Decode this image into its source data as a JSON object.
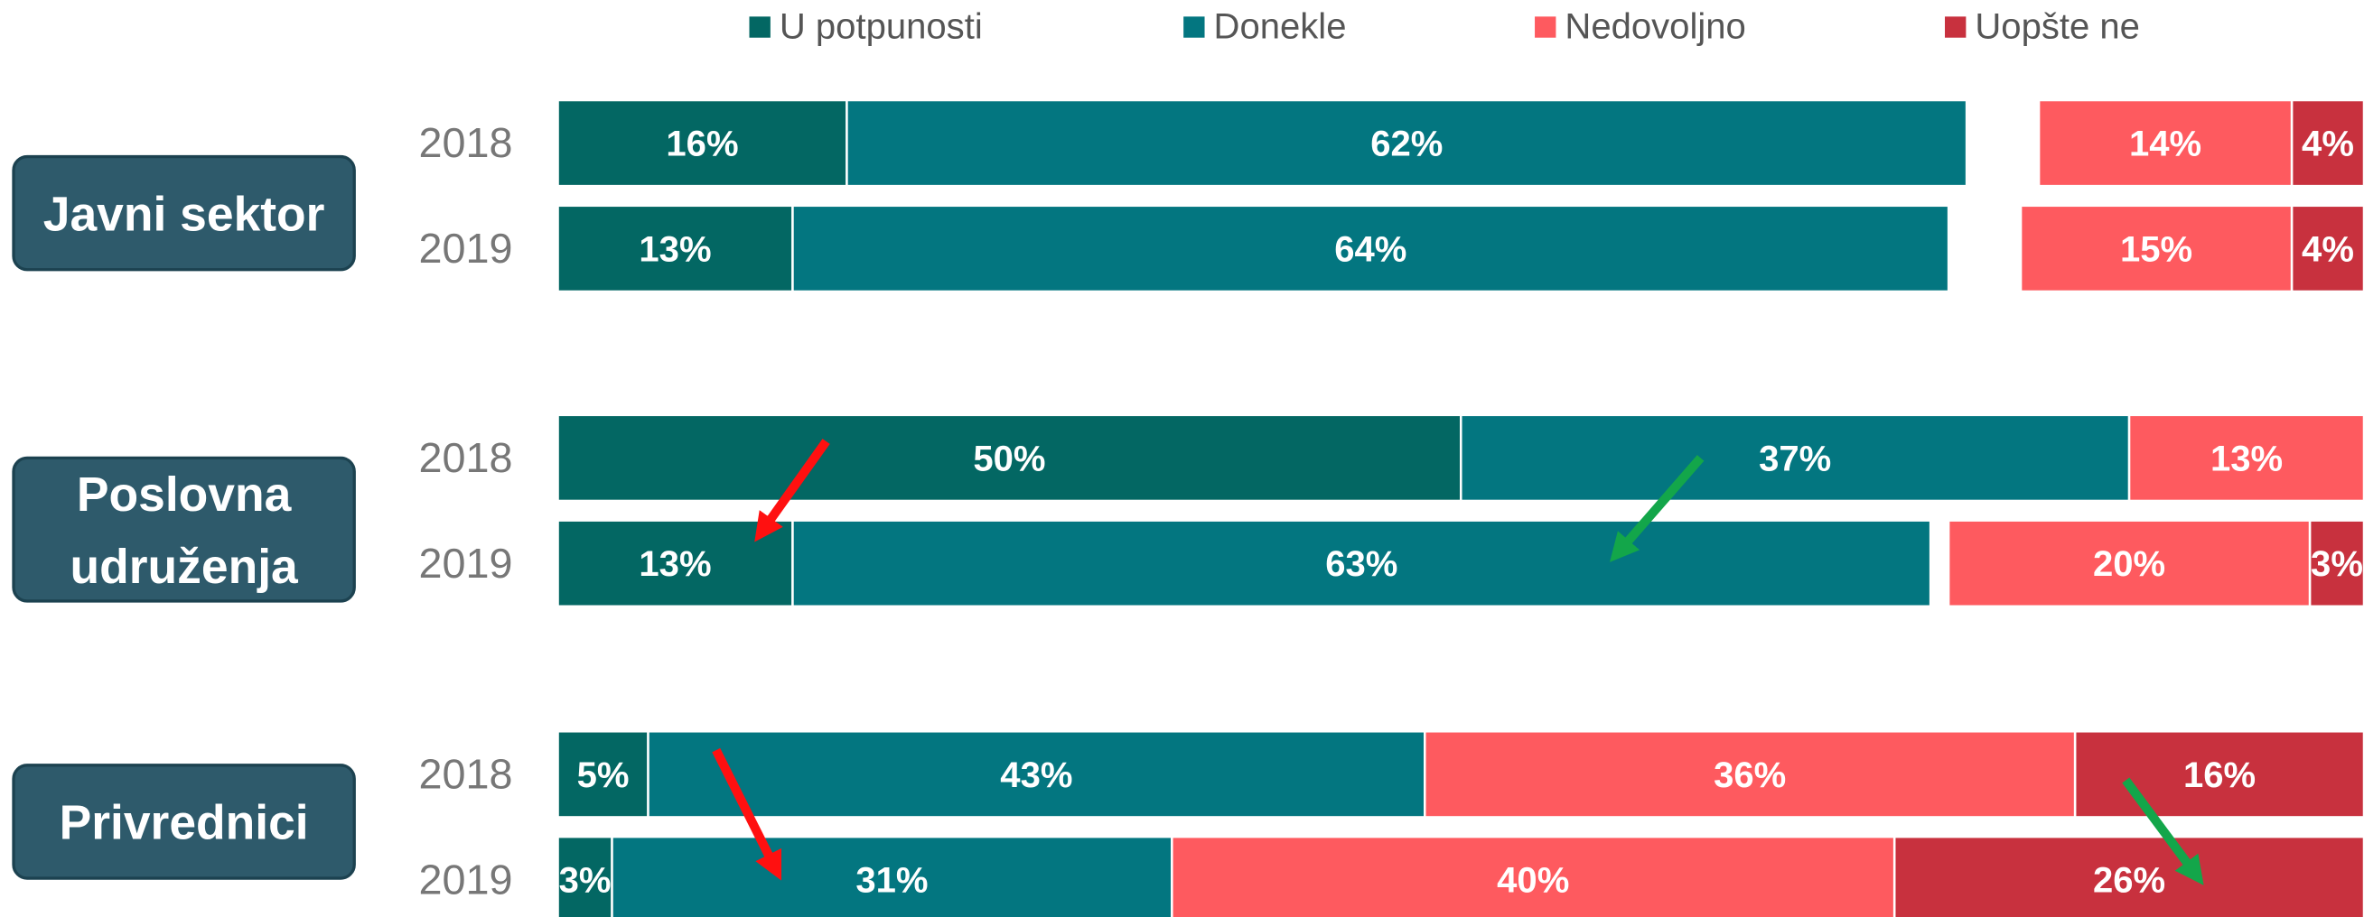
{
  "chart_data": {
    "type": "bar",
    "orientation": "horizontal",
    "stacked": true,
    "groups": [
      "Javni sektor",
      "Poslovna udruženja",
      "Privrednici"
    ],
    "categories": [
      "2018",
      "2019",
      "2018",
      "2019",
      "2018",
      "2019"
    ],
    "xlim": [
      0,
      100
    ],
    "series": [
      {
        "name": "U potpunosti",
        "color": "#036763",
        "values": [
          16,
          13,
          50,
          13,
          5,
          3
        ],
        "value_labels": [
          "16%",
          "13%",
          "50%",
          "13%",
          "5%",
          "3%"
        ]
      },
      {
        "name": "Donekle",
        "color": "#037680",
        "values": [
          62,
          64,
          37,
          63,
          43,
          31
        ],
        "value_labels": [
          "62%",
          "64%",
          "37%",
          "63%",
          "43%",
          "31%"
        ]
      },
      {
        "name": "Nedovoljno",
        "color": "#fe5a5f",
        "values": [
          14,
          15,
          13,
          20,
          36,
          40
        ],
        "value_labels": [
          "14%",
          "15%",
          "13%",
          "20%",
          "36%",
          "40%"
        ]
      },
      {
        "name": "Uopšte ne",
        "color": "#c8313e",
        "values": [
          4,
          4,
          null,
          3,
          16,
          26
        ],
        "value_labels": [
          "4%",
          "4%",
          null,
          "3%",
          "16%",
          "26%"
        ]
      }
    ]
  }
}
